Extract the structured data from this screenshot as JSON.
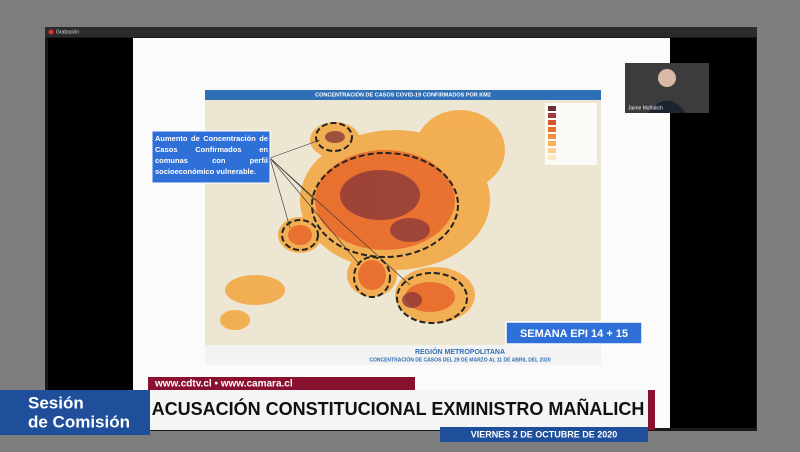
{
  "window": {
    "recording_label": "Grabación"
  },
  "slide": {
    "map_title": "CONCENTRACIÓN DE CASOS COVID-19 CONFIRMADOS POR KM2",
    "callout": "Aumento de Concentración de Casos Confirmados en comunas con perfil socioeconómico vulnerable.",
    "week_badge": "SEMANA EPI 14 + 15",
    "region": "REGIÓN METROPOLITANA",
    "period": "CONCENTRACIÓN DE CASOS DEL 29 DE MARZO AL 11 DE ABRIL DEL 2020"
  },
  "video_tile": {
    "name": "Jaime Mañalich"
  },
  "broadcast": {
    "websites": "www.cdtv.cl  •  www.camara.cl",
    "program_line1": "Sesión",
    "program_line2": "de Comisión",
    "headline": "ACUSACIÓN CONSTITUCIONAL EXMINISTRO MAÑALICH",
    "date": "VIERNES 2 DE OCTUBRE DE 2020"
  }
}
